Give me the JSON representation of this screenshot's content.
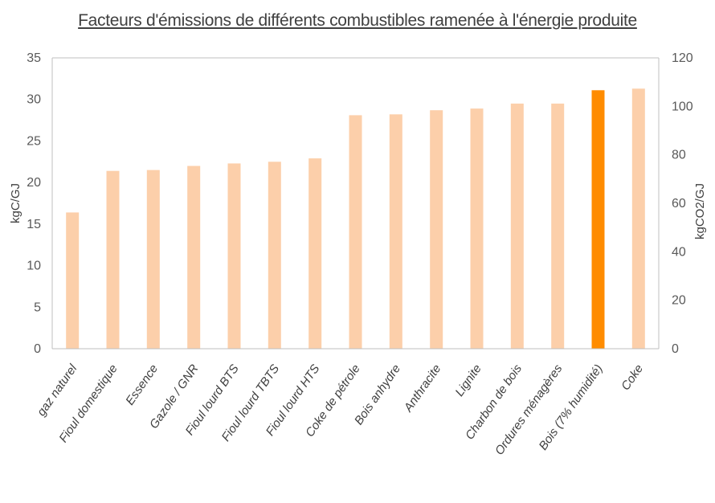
{
  "chart_data": {
    "type": "bar",
    "title": "Facteurs d'émissions de différents combustibles ramenée à l'énergie produite",
    "ylabel": "kgC/GJ",
    "y2label": "kgCO2/GJ",
    "ylim": [
      0,
      35
    ],
    "y2lim": [
      0,
      120
    ],
    "yticks": [
      "0",
      "5",
      "10",
      "15",
      "20",
      "25",
      "30",
      "35"
    ],
    "y2ticks": [
      "0",
      "20",
      "40",
      "60",
      "80",
      "100",
      "120"
    ],
    "categories": [
      "gaz naturel",
      "Fioul domestique",
      "Essence",
      "Gazole / GNR",
      "Fioul lourd BTS",
      "Fioul lourd TBTS",
      "Fioul lourd HTS",
      "Coke de pétrole",
      "Bois anhydre",
      "Anthracite",
      "Lignite",
      "Charbon de bois",
      "Ordures ménagères",
      "Bois (7% humidité)",
      "Coke"
    ],
    "values": [
      16.4,
      21.4,
      21.5,
      22.0,
      22.3,
      22.5,
      22.9,
      28.1,
      28.2,
      28.7,
      28.9,
      29.5,
      29.5,
      31.1,
      31.3
    ],
    "highlight_index": 13,
    "colors": {
      "bar": "#FCCFAA",
      "highlight": "#FF8C00",
      "axis": "#BFBFBF"
    },
    "grid": false,
    "legend": "none"
  }
}
